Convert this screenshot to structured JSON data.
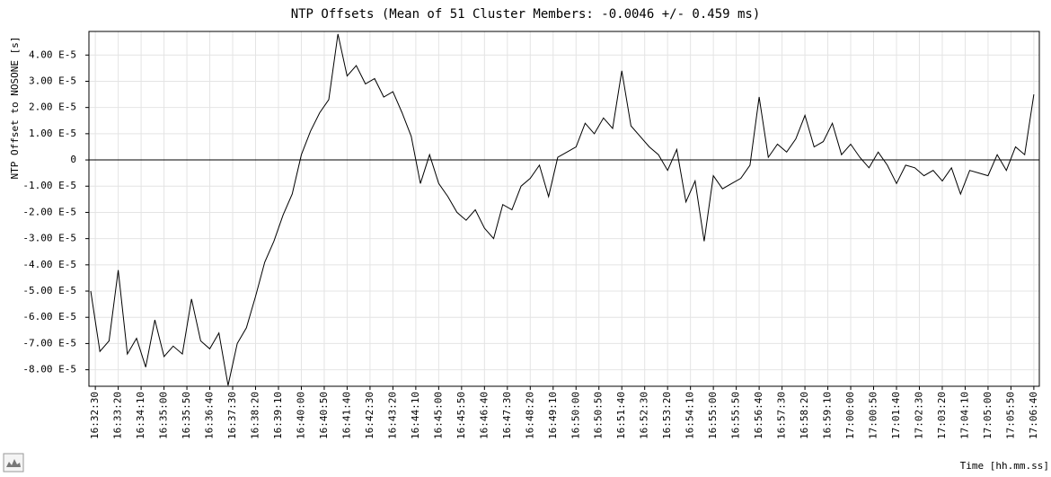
{
  "chart_data": {
    "type": "line",
    "title": "NTP Offsets (Mean of 51 Cluster Members: -0.0046 +/- 0.459 ms)",
    "y_label": "NTP Offset to NOSONE [s]",
    "x_label": "Time [hh.mm.ss]",
    "color": "#000000",
    "grid": true,
    "x": [
      "16:32:20",
      "16:32:40",
      "16:33:00",
      "16:33:20",
      "16:33:40",
      "16:34:00",
      "16:34:20",
      "16:34:40",
      "16:35:00",
      "16:35:20",
      "16:35:40",
      "16:36:00",
      "16:36:20",
      "16:36:40",
      "16:37:00",
      "16:37:20",
      "16:37:40",
      "16:38:00",
      "16:38:20",
      "16:38:40",
      "16:39:00",
      "16:39:20",
      "16:39:40",
      "16:40:00",
      "16:40:20",
      "16:40:40",
      "16:41:00",
      "16:41:20",
      "16:41:40",
      "16:42:00",
      "16:42:20",
      "16:42:40",
      "16:43:00",
      "16:43:20",
      "16:43:40",
      "16:44:00",
      "16:44:20",
      "16:44:40",
      "16:45:00",
      "16:45:20",
      "16:45:40",
      "16:46:00",
      "16:46:20",
      "16:46:40",
      "16:47:00",
      "16:47:20",
      "16:47:40",
      "16:48:00",
      "16:48:20",
      "16:48:40",
      "16:49:00",
      "16:49:20",
      "16:49:40",
      "16:50:00",
      "16:50:20",
      "16:50:40",
      "16:51:00",
      "16:51:20",
      "16:51:40",
      "16:52:00",
      "16:52:20",
      "16:52:40",
      "16:53:00",
      "16:53:20",
      "16:53:40",
      "16:54:00",
      "16:54:20",
      "16:54:40",
      "16:55:00",
      "16:55:20",
      "16:55:40",
      "16:56:00",
      "16:56:20",
      "16:56:40",
      "16:57:00",
      "16:57:20",
      "16:57:40",
      "16:58:00",
      "16:58:20",
      "16:58:40",
      "16:59:00",
      "16:59:20",
      "16:59:40",
      "17:00:00",
      "17:00:20",
      "17:00:40",
      "17:01:00",
      "17:01:20",
      "17:01:40",
      "17:02:00",
      "17:02:20",
      "17:02:40",
      "17:03:00",
      "17:03:20",
      "17:03:40",
      "17:04:00",
      "17:04:20",
      "17:04:40",
      "17:05:00",
      "17:05:20",
      "17:05:40",
      "17:06:00",
      "17:06:20",
      "17:06:40"
    ],
    "values": [
      -5e-05,
      -7.3e-05,
      -6.9e-05,
      -4.2e-05,
      -7.4e-05,
      -6.8e-05,
      -7.9e-05,
      -6.1e-05,
      -7.5e-05,
      -7.1e-05,
      -7.4e-05,
      -5.3e-05,
      -6.9e-05,
      -7.2e-05,
      -6.6e-05,
      -8.6e-05,
      -7e-05,
      -6.4e-05,
      -5.2e-05,
      -3.9e-05,
      -3.1e-05,
      -2.1e-05,
      -1.3e-05,
      2e-06,
      1.1e-05,
      1.8e-05,
      2.3e-05,
      4.8e-05,
      3.2e-05,
      3.6e-05,
      2.9e-05,
      3.1e-05,
      2.4e-05,
      2.6e-05,
      1.8e-05,
      9e-06,
      -9e-06,
      2e-06,
      -9e-06,
      -1.4e-05,
      -2e-05,
      -2.3e-05,
      -1.9e-05,
      -2.6e-05,
      -3e-05,
      -1.7e-05,
      -1.9e-05,
      -1e-05,
      -7e-06,
      -2e-06,
      -1.4e-05,
      1e-06,
      3e-06,
      5e-06,
      1.4e-05,
      1e-05,
      1.6e-05,
      1.2e-05,
      3.4e-05,
      1.3e-05,
      9e-06,
      5e-06,
      2e-06,
      -4e-06,
      4e-06,
      -1.6e-05,
      -8e-06,
      -3.1e-05,
      -6e-06,
      -1.1e-05,
      -9e-06,
      -7e-06,
      -2e-06,
      2.4e-05,
      1e-06,
      6e-06,
      3e-06,
      8e-06,
      1.7e-05,
      5e-06,
      7e-06,
      1.4e-05,
      2e-06,
      6e-06,
      1e-06,
      -3e-06,
      3e-06,
      -2e-06,
      -9e-06,
      -2e-06,
      -3e-06,
      -6e-06,
      -4e-06,
      -8e-06,
      -3e-06,
      -1.3e-05,
      -4e-06,
      -5e-06,
      -6e-06,
      2e-06,
      -4e-06,
      5e-06,
      2e-06,
      2.5e-05
    ],
    "xlim": [
      "16:32:16",
      "17:06:52"
    ],
    "xticks": [
      "16:32:30",
      "16:33:20",
      "16:34:10",
      "16:35:00",
      "16:35:50",
      "16:36:40",
      "16:37:30",
      "16:38:20",
      "16:39:10",
      "16:40:00",
      "16:40:50",
      "16:41:40",
      "16:42:30",
      "16:43:20",
      "16:44:10",
      "16:45:00",
      "16:45:50",
      "16:46:40",
      "16:47:30",
      "16:48:20",
      "16:49:10",
      "16:50:00",
      "16:50:50",
      "16:51:40",
      "16:52:30",
      "16:53:20",
      "16:54:10",
      "16:55:00",
      "16:55:50",
      "16:56:40",
      "16:57:30",
      "16:58:20",
      "16:59:10",
      "17:00:00",
      "17:00:50",
      "17:01:40",
      "17:02:30",
      "17:03:20",
      "17:04:10",
      "17:05:00",
      "17:05:50",
      "17:06:40"
    ],
    "ylim": [
      -8.63e-05,
      4.9e-05
    ],
    "yticks": [
      {
        "value": 4e-05,
        "label": "4.00 E-5"
      },
      {
        "value": 3e-05,
        "label": "3.00 E-5"
      },
      {
        "value": 2e-05,
        "label": "2.00 E-5"
      },
      {
        "value": 1e-05,
        "label": "1.00 E-5"
      },
      0,
      {
        "value": -1e-05,
        "label": "-1.00 E-5"
      },
      {
        "value": -2e-05,
        "label": "-2.00 E-5"
      },
      {
        "value": -3e-05,
        "label": "-3.00 E-5"
      },
      {
        "value": -4e-05,
        "label": "-4.00 E-5"
      },
      {
        "value": -5e-05,
        "label": "-5.00 E-5"
      },
      {
        "value": -6e-05,
        "label": "-6.00 E-5"
      },
      {
        "value": -7e-05,
        "label": "-7.00 E-5"
      },
      {
        "value": -8e-05,
        "label": "-8.00 E-5"
      }
    ]
  }
}
